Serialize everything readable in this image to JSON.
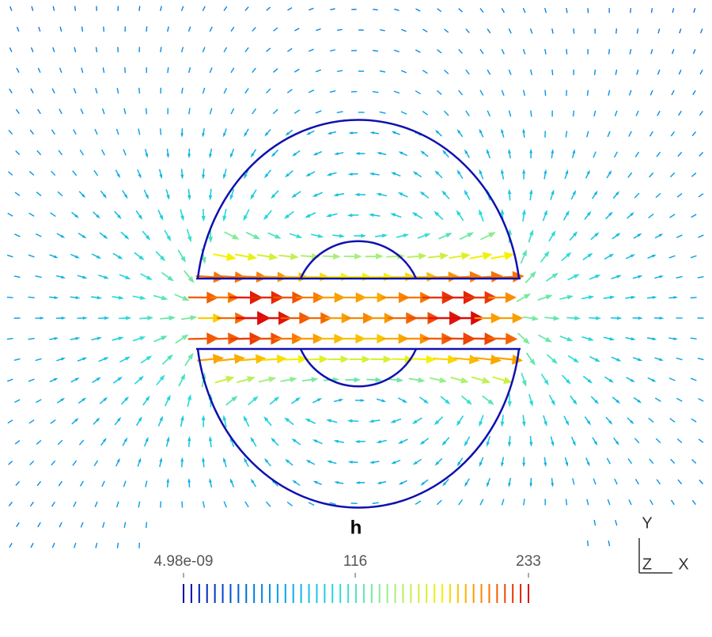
{
  "chart_data": {
    "type": "vector_field",
    "title": "h",
    "colorbar": {
      "clim": [
        4.98e-09,
        233
      ],
      "ticks": [
        {
          "value": 4.98e-09,
          "label": "4.98e-09"
        },
        116,
        233
      ]
    },
    "axes_triad": [
      "Y",
      "Z",
      "X"
    ]
  }
}
